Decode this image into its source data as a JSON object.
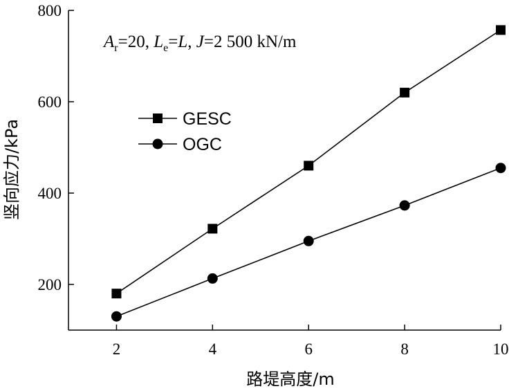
{
  "chart_data": {
    "type": "line",
    "x": [
      2,
      4,
      6,
      8,
      10
    ],
    "series": [
      {
        "name": "GESC",
        "marker": "square",
        "values": [
          180,
          322,
          460,
          620,
          757
        ]
      },
      {
        "name": "OGC",
        "marker": "circle",
        "values": [
          130,
          213,
          295,
          373,
          455
        ]
      }
    ],
    "xlabel": "路堤高度/m",
    "ylabel": "竖向应力/kPa",
    "xlim": [
      1,
      10
    ],
    "ylim": [
      100,
      800
    ],
    "xticks": [
      "2",
      "4",
      "6",
      "8",
      "10"
    ],
    "yticks": [
      "200",
      "400",
      "600",
      "800"
    ],
    "grid": false,
    "legend_position": "upper-left",
    "annotation": {
      "a_sym": "A",
      "a_sub": "r",
      "a_rest": "=20, ",
      "l_sym": "L",
      "l_sub": "e",
      "l_eq": "=",
      "l_val": "L",
      "j_sep": ", ",
      "j_sym": "J",
      "j_rest": "=2 500 kN/m"
    },
    "color": "#000000"
  }
}
